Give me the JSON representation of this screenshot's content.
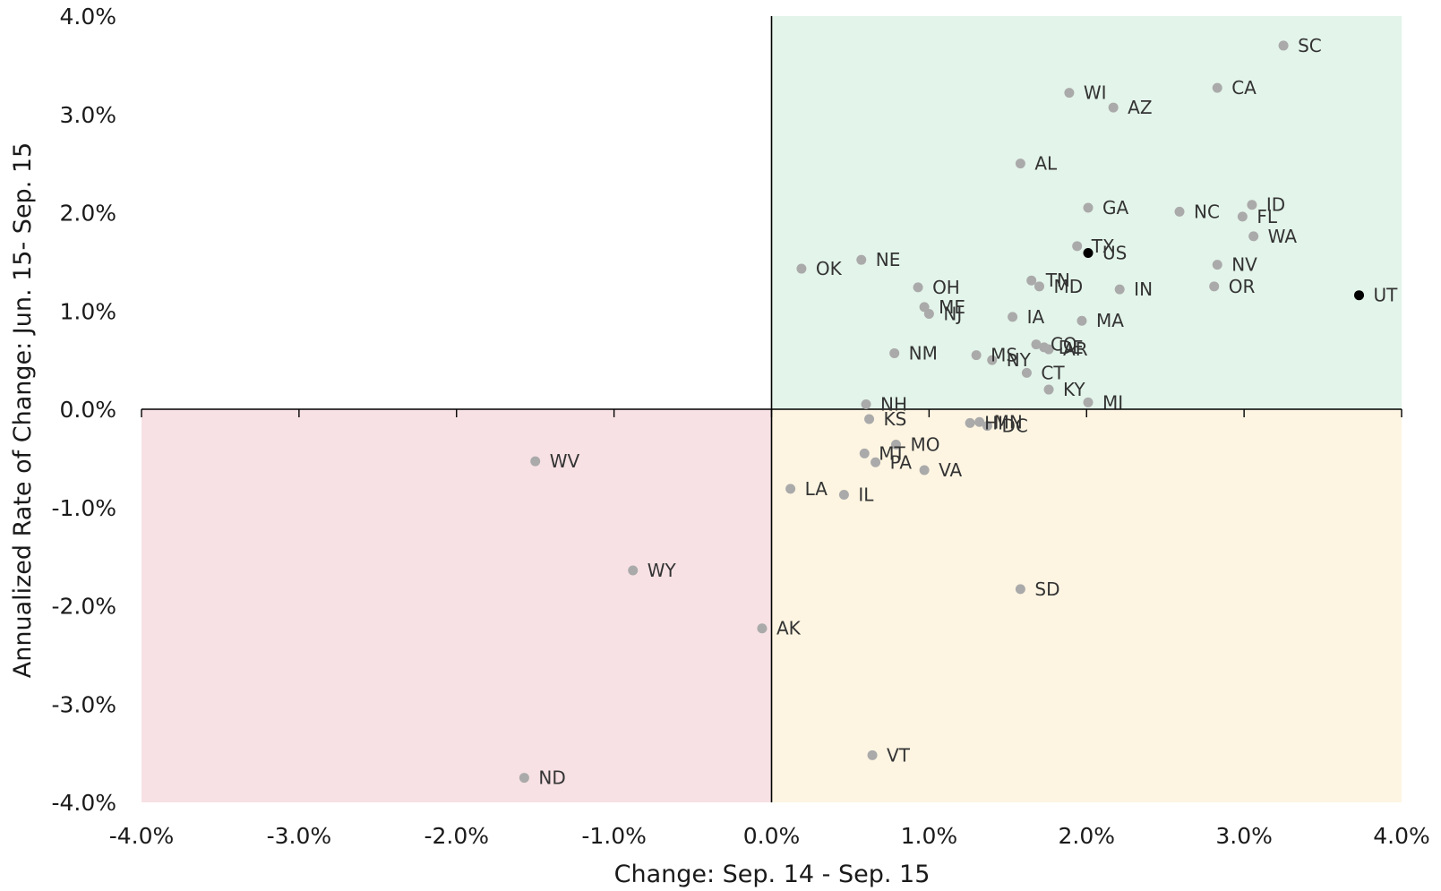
{
  "chart_data": {
    "type": "scatter",
    "title": "",
    "xlabel": "Change: Sep. 14 - Sep. 15",
    "ylabel": "Annualized Rate of Change: Jun. 15- Sep. 15",
    "xlim": [
      -4.0,
      4.0
    ],
    "ylim": [
      -4.0,
      4.0
    ],
    "x_ticks": [
      -4.0,
      -3.0,
      -2.0,
      -1.0,
      0.0,
      1.0,
      2.0,
      3.0,
      4.0
    ],
    "y_ticks": [
      -4.0,
      -3.0,
      -2.0,
      -1.0,
      0.0,
      1.0,
      2.0,
      3.0,
      4.0
    ],
    "x_tick_labels": [
      "-4.0%",
      "-3.0%",
      "-2.0%",
      "-1.0%",
      "0.0%",
      "1.0%",
      "2.0%",
      "3.0%",
      "4.0%"
    ],
    "y_tick_labels": [
      "-4.0%",
      "-3.0%",
      "-2.0%",
      "-1.0%",
      "0.0%",
      "1.0%",
      "2.0%",
      "3.0%",
      "4.0%"
    ],
    "grid": false,
    "legend": "none",
    "quadrant_colors": {
      "top_right": "#e3f4ea",
      "bottom_right": "#fdf5e2",
      "bottom_left": "#f7e1e4"
    },
    "colors": {
      "point_default": "#aaaaaa",
      "point_highlight": "#000000",
      "axis": "#000000"
    },
    "points": [
      {
        "label": "SC",
        "x": 3.25,
        "y": 3.7
      },
      {
        "label": "CA",
        "x": 2.83,
        "y": 3.27
      },
      {
        "label": "WI",
        "x": 1.89,
        "y": 3.22
      },
      {
        "label": "AZ",
        "x": 2.17,
        "y": 3.07
      },
      {
        "label": "AL",
        "x": 1.58,
        "y": 2.5
      },
      {
        "label": "GA",
        "x": 2.01,
        "y": 2.05
      },
      {
        "label": "NC",
        "x": 2.59,
        "y": 2.01
      },
      {
        "label": "ID",
        "x": 3.05,
        "y": 2.08
      },
      {
        "label": "FL",
        "x": 2.99,
        "y": 1.96
      },
      {
        "label": "WA",
        "x": 3.06,
        "y": 1.76
      },
      {
        "label": "TX",
        "x": 1.94,
        "y": 1.66
      },
      {
        "label": "US",
        "x": 2.01,
        "y": 1.59,
        "highlight": true
      },
      {
        "label": "NV",
        "x": 2.83,
        "y": 1.47
      },
      {
        "label": "OR",
        "x": 2.81,
        "y": 1.25
      },
      {
        "label": "UT",
        "x": 3.73,
        "y": 1.16,
        "highlight": true
      },
      {
        "label": "OK",
        "x": 0.19,
        "y": 1.43
      },
      {
        "label": "NE",
        "x": 0.57,
        "y": 1.52
      },
      {
        "label": "OH",
        "x": 0.93,
        "y": 1.24
      },
      {
        "label": "TN",
        "x": 1.65,
        "y": 1.31
      },
      {
        "label": "MD",
        "x": 1.7,
        "y": 1.25
      },
      {
        "label": "IN",
        "x": 2.21,
        "y": 1.22
      },
      {
        "label": "ME",
        "x": 0.97,
        "y": 1.04
      },
      {
        "label": "NJ",
        "x": 1.0,
        "y": 0.97
      },
      {
        "label": "IA",
        "x": 1.53,
        "y": 0.94
      },
      {
        "label": "MA",
        "x": 1.97,
        "y": 0.9
      },
      {
        "label": "CO",
        "x": 1.68,
        "y": 0.66
      },
      {
        "label": "DE",
        "x": 1.73,
        "y": 0.63
      },
      {
        "label": "AR",
        "x": 1.76,
        "y": 0.61
      },
      {
        "label": "NM",
        "x": 0.78,
        "y": 0.57
      },
      {
        "label": "MS",
        "x": 1.3,
        "y": 0.55
      },
      {
        "label": "NY",
        "x": 1.4,
        "y": 0.5
      },
      {
        "label": "CT",
        "x": 1.62,
        "y": 0.37
      },
      {
        "label": "KY",
        "x": 1.76,
        "y": 0.2
      },
      {
        "label": "MI",
        "x": 2.01,
        "y": 0.07
      },
      {
        "label": "NH",
        "x": 0.6,
        "y": 0.05
      },
      {
        "label": "KS",
        "x": 0.62,
        "y": -0.1
      },
      {
        "label": "HI",
        "x": 1.26,
        "y": -0.14
      },
      {
        "label": "MN",
        "x": 1.32,
        "y": -0.13
      },
      {
        "label": "DC",
        "x": 1.37,
        "y": -0.17
      },
      {
        "label": "MO",
        "x": 0.79,
        "y": -0.36
      },
      {
        "label": "MT",
        "x": 0.59,
        "y": -0.45
      },
      {
        "label": "PA",
        "x": 0.66,
        "y": -0.54
      },
      {
        "label": "VA",
        "x": 0.97,
        "y": -0.62
      },
      {
        "label": "WV",
        "x": -1.5,
        "y": -0.53
      },
      {
        "label": "LA",
        "x": 0.12,
        "y": -0.81
      },
      {
        "label": "IL",
        "x": 0.46,
        "y": -0.87
      },
      {
        "label": "WY",
        "x": -0.88,
        "y": -1.64
      },
      {
        "label": "SD",
        "x": 1.58,
        "y": -1.83
      },
      {
        "label": "AK",
        "x": -0.06,
        "y": -2.23
      },
      {
        "label": "VT",
        "x": 0.64,
        "y": -3.52
      },
      {
        "label": "ND",
        "x": -1.57,
        "y": -3.75
      }
    ]
  }
}
